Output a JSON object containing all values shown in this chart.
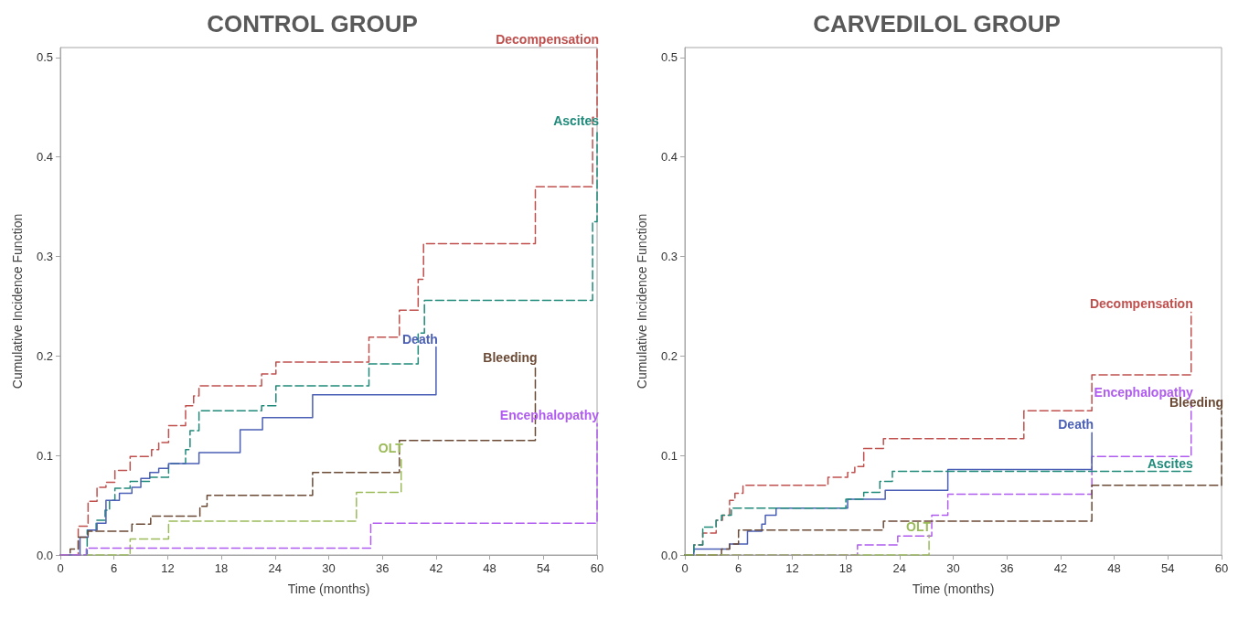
{
  "chart_data": [
    {
      "type": "step",
      "title": "CONTROL GROUP",
      "xlabel": "Time (months)",
      "ylabel": "Cumulative Incidence Function",
      "xlim": [
        0,
        60
      ],
      "xticks": [
        0,
        6,
        12,
        18,
        24,
        30,
        36,
        42,
        48,
        54,
        60
      ],
      "ylim": [
        0,
        0.51
      ],
      "yticks": [
        {
          "value": 0,
          "label": "0.0"
        },
        0.1,
        0.2,
        0.3,
        0.4,
        0.5
      ],
      "grid": false,
      "legend": false,
      "marker": "none",
      "series": [
        {
          "name": "Decompensation",
          "color": "#c0504d",
          "line_style": "dashed",
          "x": [
            0,
            2.0,
            3.1,
            4.1,
            5.1,
            6.1,
            7.8,
            10.2,
            11.0,
            12.1,
            14.0,
            14.9,
            15.5,
            22.5,
            24.1,
            34.5,
            37.9,
            40.0,
            40.6,
            53.1,
            59.5,
            60
          ],
          "values": [
            0,
            0.029,
            0.054,
            0.068,
            0.073,
            0.085,
            0.099,
            0.106,
            0.113,
            0.13,
            0.15,
            0.16,
            0.17,
            0.182,
            0.194,
            0.219,
            0.246,
            0.277,
            0.313,
            0.37,
            0.44,
            0.51
          ]
        },
        {
          "name": "Ascites",
          "color": "#1f8a7a",
          "line_style": "dashed",
          "x": [
            0,
            3.0,
            4.0,
            5.0,
            5.5,
            6.1,
            7.8,
            10.0,
            12.1,
            14.0,
            14.5,
            15.5,
            22.5,
            24.1,
            34.5,
            40.0,
            40.7,
            59.5,
            60
          ],
          "values": [
            0,
            0.025,
            0.035,
            0.045,
            0.055,
            0.067,
            0.074,
            0.078,
            0.092,
            0.106,
            0.125,
            0.145,
            0.15,
            0.17,
            0.192,
            0.223,
            0.256,
            0.335,
            0.428
          ]
        },
        {
          "name": "Death",
          "color": "#4a5fb5",
          "line_style": "solid",
          "x": [
            0,
            2.2,
            3.1,
            4.1,
            5.1,
            6.6,
            8.0,
            9.0,
            10.0,
            11.0,
            12.1,
            15.5,
            20.1,
            22.6,
            28.2,
            42.0
          ],
          "values": [
            0,
            0.018,
            0.025,
            0.032,
            0.055,
            0.062,
            0.068,
            0.077,
            0.083,
            0.087,
            0.092,
            0.103,
            0.126,
            0.138,
            0.161,
            0.209
          ]
        },
        {
          "name": "Bleeding",
          "color": "#6b4a35",
          "line_style": "dashed",
          "x": [
            0,
            1.1,
            2.0,
            3.1,
            8.0,
            10.1,
            15.6,
            16.4,
            28.2,
            37.9,
            53.1
          ],
          "values": [
            0,
            0.006,
            0.018,
            0.024,
            0.031,
            0.039,
            0.049,
            0.06,
            0.083,
            0.115,
            0.19
          ]
        },
        {
          "name": "OLT",
          "color": "#9bbb59",
          "line_style": "dashed",
          "x": [
            0,
            7.8,
            12.1,
            33.1,
            38.1
          ],
          "values": [
            0,
            0.016,
            0.034,
            0.063,
            0.099
          ]
        },
        {
          "name": "Encephalopathy",
          "color": "#b05cf0",
          "line_style": "dashed",
          "x": [
            0,
            2.9,
            34.7,
            60
          ],
          "values": [
            0,
            0.007,
            0.032,
            0.132
          ]
        }
      ]
    },
    {
      "type": "step",
      "title": "CARVEDILOL GROUP",
      "xlabel": "Time (months)",
      "ylabel": "Cumulative Incidence Function",
      "xlim": [
        0,
        60
      ],
      "xticks": [
        0,
        6,
        12,
        18,
        24,
        30,
        36,
        42,
        48,
        54,
        60
      ],
      "ylim": [
        0,
        0.51
      ],
      "yticks": [
        {
          "value": 0,
          "label": "0.0"
        },
        0.1,
        0.2,
        0.3,
        0.4,
        0.5
      ],
      "grid": false,
      "legend": false,
      "marker": "none",
      "series": [
        {
          "name": "Decompensation",
          "color": "#c0504d",
          "line_style": "dashed",
          "x": [
            0,
            1.0,
            2.0,
            3.5,
            4.2,
            5.0,
            5.6,
            6.5,
            16.0,
            18.2,
            19.0,
            20.0,
            22.2,
            37.9,
            45.5,
            56.6
          ],
          "values": [
            0,
            0.01,
            0.022,
            0.035,
            0.04,
            0.055,
            0.062,
            0.07,
            0.078,
            0.083,
            0.089,
            0.107,
            0.117,
            0.145,
            0.181,
            0.244
          ]
        },
        {
          "name": "Encephalopathy",
          "color": "#b05cf0",
          "line_style": "dashed",
          "x": [
            0,
            19.3,
            23.8,
            27.6,
            29.4,
            45.5,
            56.6
          ],
          "values": [
            0,
            0.01,
            0.019,
            0.04,
            0.061,
            0.099,
            0.155
          ]
        },
        {
          "name": "Death",
          "color": "#4a5fb5",
          "line_style": "solid",
          "x": [
            0,
            1.0,
            5.0,
            7.0,
            8.6,
            9.0,
            10.2,
            18.2,
            22.4,
            29.4,
            45.5
          ],
          "values": [
            0,
            0.006,
            0.011,
            0.024,
            0.031,
            0.04,
            0.047,
            0.056,
            0.065,
            0.086,
            0.123
          ]
        },
        {
          "name": "Ascites",
          "color": "#1f8a7a",
          "line_style": "dashed",
          "x": [
            0,
            1.0,
            2.0,
            3.5,
            4.1,
            5.2,
            18.0,
            20.0,
            21.8,
            23.2,
            56.6
          ],
          "values": [
            0,
            0.01,
            0.028,
            0.035,
            0.04,
            0.047,
            0.056,
            0.063,
            0.074,
            0.084,
            0.084
          ]
        },
        {
          "name": "Bleeding",
          "color": "#6b4a35",
          "line_style": "dashed",
          "x": [
            0,
            4.1,
            5.0,
            6.0,
            22.2,
            45.5,
            60
          ],
          "values": [
            0,
            0.006,
            0.011,
            0.025,
            0.034,
            0.07,
            0.145
          ]
        },
        {
          "name": "OLT",
          "color": "#9bbb59",
          "line_style": "dashed",
          "x": [
            0,
            27.3
          ],
          "values": [
            0,
            0.02
          ]
        }
      ]
    }
  ]
}
